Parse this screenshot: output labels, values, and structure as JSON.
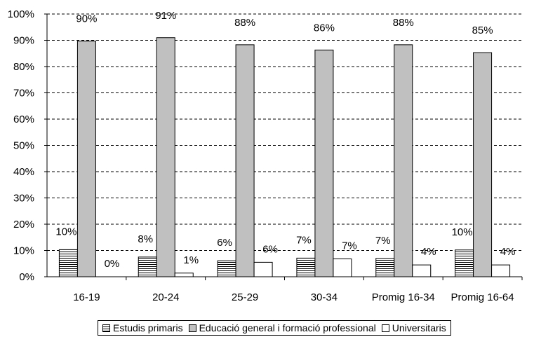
{
  "chart_data": {
    "type": "bar",
    "categories": [
      "16-19",
      "20-24",
      "25-29",
      "30-34",
      "Promig 16-34",
      "Promig 16-64"
    ],
    "series": [
      {
        "name": "Estudis primaris",
        "values": [
          10,
          8,
          6,
          7,
          7,
          10
        ],
        "labels": [
          "10%",
          "8%",
          "6%",
          "7%",
          "7%",
          "10%"
        ],
        "plotted": [
          10.3,
          7.5,
          6.1,
          7.1,
          7.0,
          10.2
        ],
        "pattern": "horizontal-stripes"
      },
      {
        "name": "Educació general i formació professional",
        "values": [
          90,
          91,
          88,
          86,
          88,
          85
        ],
        "labels": [
          "90%",
          "91%",
          "88%",
          "86%",
          "88%",
          "85%"
        ],
        "plotted": [
          89.7,
          91.0,
          88.3,
          86.3,
          88.3,
          85.3
        ],
        "color": "#c0c0c0"
      },
      {
        "name": "Universitaris",
        "values": [
          0,
          1,
          6,
          7,
          4,
          4
        ],
        "labels": [
          "0%",
          "1%",
          "6%",
          "7%",
          "4%",
          "4%"
        ],
        "plotted": [
          0.0,
          1.4,
          5.5,
          6.8,
          4.5,
          4.5
        ],
        "color": "#ffffff"
      }
    ],
    "yticks": [
      "0%",
      "10%",
      "20%",
      "30%",
      "40%",
      "50%",
      "60%",
      "70%",
      "80%",
      "90%",
      "100%"
    ],
    "ylim": [
      0,
      100
    ],
    "grid": "dashed horizontal",
    "legend": "bottom"
  }
}
